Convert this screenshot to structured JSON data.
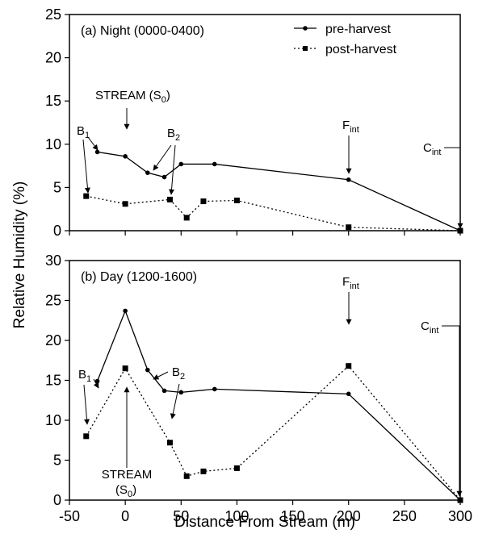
{
  "chart_data": {
    "type": "line",
    "xlabel": "Distance From Stream (m)",
    "ylabel": "Relative Humidity (%)",
    "xlim": [
      -50,
      300
    ],
    "x_ticks": [
      "-50",
      "0",
      "50",
      "100",
      "150",
      "200",
      "250",
      "300"
    ],
    "legend": {
      "placement": "top-right",
      "entries": [
        "pre-harvest",
        "post-harvest"
      ]
    },
    "panels": [
      {
        "title": "(a) Night (0000-0400)",
        "ylim": [
          0,
          25
        ],
        "y_ticks": [
          "0",
          "5",
          "10",
          "15",
          "20",
          "25"
        ],
        "series": [
          {
            "name": "pre-harvest",
            "style": "solid-circle",
            "points": [
              [
                -25,
                9.1
              ],
              [
                0,
                8.6
              ],
              [
                20,
                6.7
              ],
              [
                35,
                6.2
              ],
              [
                50,
                7.7
              ],
              [
                80,
                7.7
              ],
              [
                200,
                5.9
              ],
              [
                300,
                0
              ]
            ]
          },
          {
            "name": "post-harvest",
            "style": "dotted-square",
            "points": [
              [
                -35,
                4.0
              ],
              [
                0,
                3.1
              ],
              [
                40,
                3.6
              ],
              [
                55,
                1.5
              ],
              [
                70,
                3.4
              ],
              [
                100,
                3.5
              ],
              [
                200,
                0.4
              ],
              [
                300,
                0
              ]
            ]
          }
        ],
        "annotations": {
          "B1": "B",
          "B1_sub": "1",
          "stream": "STREAM (S",
          "stream_sub": "0",
          "stream_close": ")",
          "B2": "B",
          "B2_sub": "2",
          "F": "F",
          "F_sub": "int",
          "C": "C",
          "C_sub": "int"
        }
      },
      {
        "title": "(b) Day (1200-1600)",
        "ylim": [
          0,
          30
        ],
        "y_ticks": [
          "0",
          "5",
          "10",
          "15",
          "20",
          "25",
          "30"
        ],
        "series": [
          {
            "name": "pre-harvest",
            "style": "solid-circle",
            "points": [
              [
                -25,
                14.9
              ],
              [
                0,
                23.7
              ],
              [
                20,
                16.3
              ],
              [
                35,
                13.7
              ],
              [
                50,
                13.5
              ],
              [
                80,
                13.9
              ],
              [
                200,
                13.3
              ],
              [
                300,
                0
              ]
            ]
          },
          {
            "name": "post-harvest",
            "style": "dotted-square",
            "points": [
              [
                -35,
                8.0
              ],
              [
                0,
                16.5
              ],
              [
                40,
                7.2
              ],
              [
                55,
                3.0
              ],
              [
                70,
                3.6
              ],
              [
                100,
                4.0
              ],
              [
                200,
                16.8
              ],
              [
                300,
                0
              ]
            ]
          }
        ],
        "annotations": {
          "B1": "B",
          "B1_sub": "1",
          "stream_line1": "STREAM",
          "stream_line2": "(S",
          "stream_sub": "0",
          "stream_close": ")",
          "B2": "B",
          "B2_sub": "2",
          "F": "F",
          "F_sub": "int",
          "C": "C",
          "C_sub": "int"
        }
      }
    ]
  }
}
